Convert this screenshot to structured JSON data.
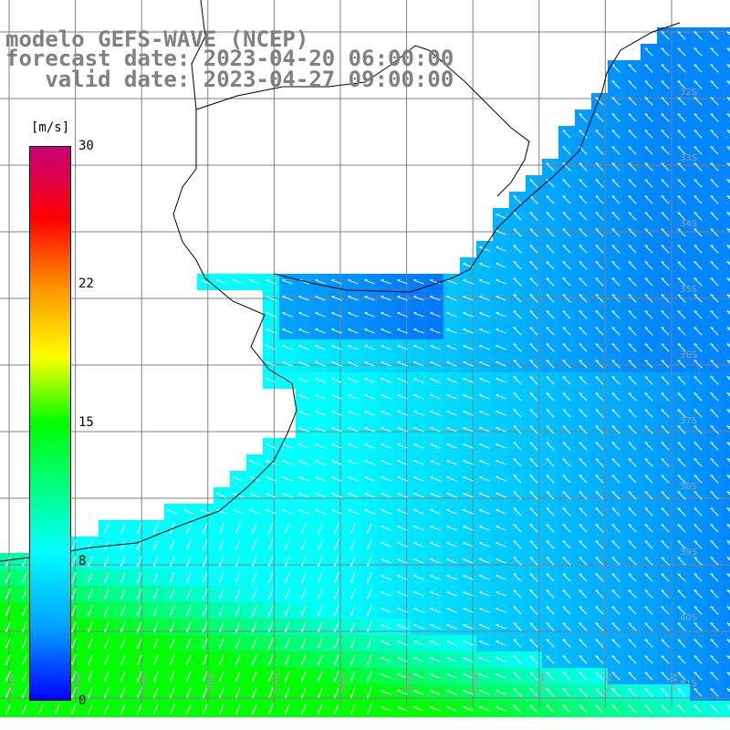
{
  "title": {
    "line1": "modelo GEFS-WAVE (NCEP)",
    "line2": "forecast date: 2023-04-20 06:00:00",
    "line3": "   valid date: 2023-04-27 09:00:00"
  },
  "colorbar": {
    "unit": "[m/s]",
    "ticks": [
      "30",
      "22",
      "15",
      "8",
      "0"
    ],
    "range": [
      0,
      30
    ],
    "colors": [
      "#0000ff",
      "#00a0ff",
      "#00ffff",
      "#00ff00",
      "#ffff00",
      "#ff9000",
      "#ff0000",
      "#c8007a"
    ]
  },
  "map": {
    "lat_labels": [
      "32S",
      "33S",
      "34S",
      "35S",
      "36S",
      "37S",
      "38S",
      "39S",
      "40S",
      "41S"
    ],
    "lon_labels": [
      "61W",
      "60W",
      "59W",
      "58W",
      "57W",
      "56W",
      "55W",
      "54W",
      "53W",
      "52W",
      "51W"
    ],
    "wind_direction": "from-southeast"
  }
}
